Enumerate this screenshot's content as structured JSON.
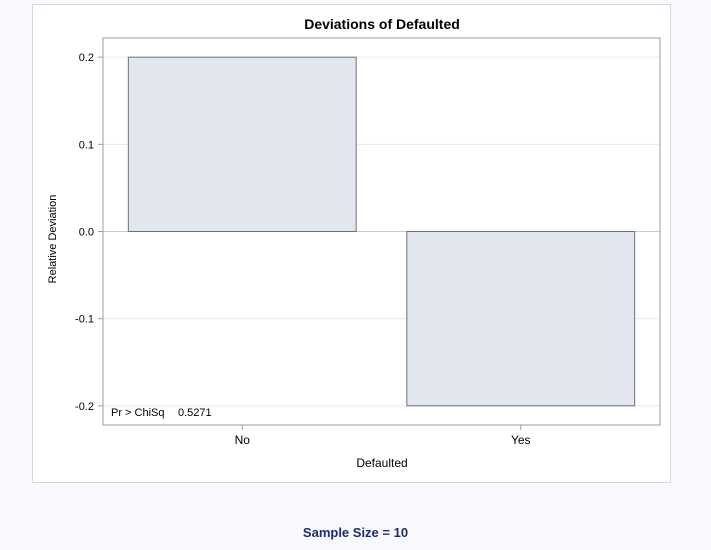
{
  "chart_data": {
    "type": "bar",
    "title": "Deviations of Defaulted",
    "xlabel": "Defaulted",
    "ylabel": "Relative Deviation",
    "categories": [
      "No",
      "Yes"
    ],
    "values": [
      0.2,
      -0.2
    ],
    "ylim": [
      -0.222,
      0.222
    ],
    "yticks": [
      -0.2,
      -0.1,
      0.0,
      0.1,
      0.2
    ],
    "ytick_labels": [
      "-0.2",
      "-0.1",
      "0.0",
      "0.1",
      "0.2"
    ],
    "grid": true,
    "annotation": {
      "label": "Pr > ChiSq",
      "value": "0.5271"
    },
    "colors": {
      "bar_fill": "#e1e6ef",
      "bar_stroke": "#6e7079",
      "grid": "#e9eaee",
      "zero_line": "#c9cbd2",
      "axis_frame": "#9c9ea5"
    }
  },
  "footer": {
    "sample_size_label": "Sample Size = 10"
  }
}
